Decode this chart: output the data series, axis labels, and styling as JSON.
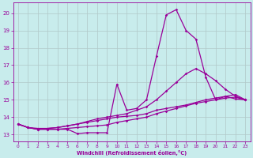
{
  "xlabel": "Windchill (Refroidissement éolien,°C)",
  "background_color": "#c8ecec",
  "line_color": "#990099",
  "grid_color": "#b0c8c8",
  "xlim": [
    -0.5,
    23.5
  ],
  "ylim": [
    12.6,
    20.6
  ],
  "xticks": [
    0,
    1,
    2,
    3,
    4,
    5,
    6,
    7,
    8,
    9,
    10,
    11,
    12,
    13,
    14,
    15,
    16,
    17,
    18,
    19,
    20,
    21,
    22,
    23
  ],
  "yticks": [
    13,
    14,
    15,
    16,
    17,
    18,
    19,
    20
  ],
  "line1_x": [
    0,
    1,
    2,
    3,
    4,
    5,
    6,
    7,
    8,
    9,
    10,
    11,
    12,
    13,
    14,
    15,
    16,
    17,
    18,
    19,
    20,
    21,
    22,
    23
  ],
  "line1_y": [
    13.6,
    13.4,
    13.3,
    13.3,
    13.3,
    13.3,
    13.05,
    13.1,
    13.1,
    13.1,
    15.9,
    14.4,
    14.5,
    15.0,
    17.5,
    19.9,
    20.2,
    19.0,
    18.5,
    16.3,
    15.0,
    15.2,
    15.05,
    15.0
  ],
  "line2_x": [
    0,
    1,
    2,
    3,
    4,
    5,
    6,
    7,
    8,
    9,
    10,
    11,
    12,
    13,
    14,
    15,
    16,
    17,
    18,
    19,
    20,
    21,
    22,
    23
  ],
  "line2_y": [
    13.6,
    13.4,
    13.35,
    13.35,
    13.4,
    13.5,
    13.6,
    13.75,
    13.9,
    14.0,
    14.1,
    14.2,
    14.4,
    14.6,
    15.0,
    15.5,
    16.0,
    16.5,
    16.8,
    16.5,
    16.1,
    15.6,
    15.2,
    15.0
  ],
  "line3_x": [
    0,
    1,
    2,
    3,
    4,
    5,
    6,
    7,
    8,
    9,
    10,
    11,
    12,
    13,
    14,
    15,
    16,
    17,
    18,
    19,
    20,
    21,
    22,
    23
  ],
  "line3_y": [
    13.6,
    13.4,
    13.3,
    13.35,
    13.4,
    13.5,
    13.6,
    13.7,
    13.8,
    13.9,
    14.0,
    14.05,
    14.1,
    14.2,
    14.4,
    14.5,
    14.6,
    14.7,
    14.85,
    15.0,
    15.1,
    15.2,
    15.3,
    15.0
  ],
  "line4_x": [
    0,
    1,
    2,
    3,
    4,
    5,
    6,
    7,
    8,
    9,
    10,
    11,
    12,
    13,
    14,
    15,
    16,
    17,
    18,
    19,
    20,
    21,
    22,
    23
  ],
  "line4_y": [
    13.6,
    13.4,
    13.3,
    13.3,
    13.3,
    13.35,
    13.4,
    13.45,
    13.5,
    13.55,
    13.7,
    13.8,
    13.9,
    14.0,
    14.2,
    14.35,
    14.5,
    14.65,
    14.8,
    14.9,
    15.0,
    15.1,
    15.15,
    15.0
  ]
}
